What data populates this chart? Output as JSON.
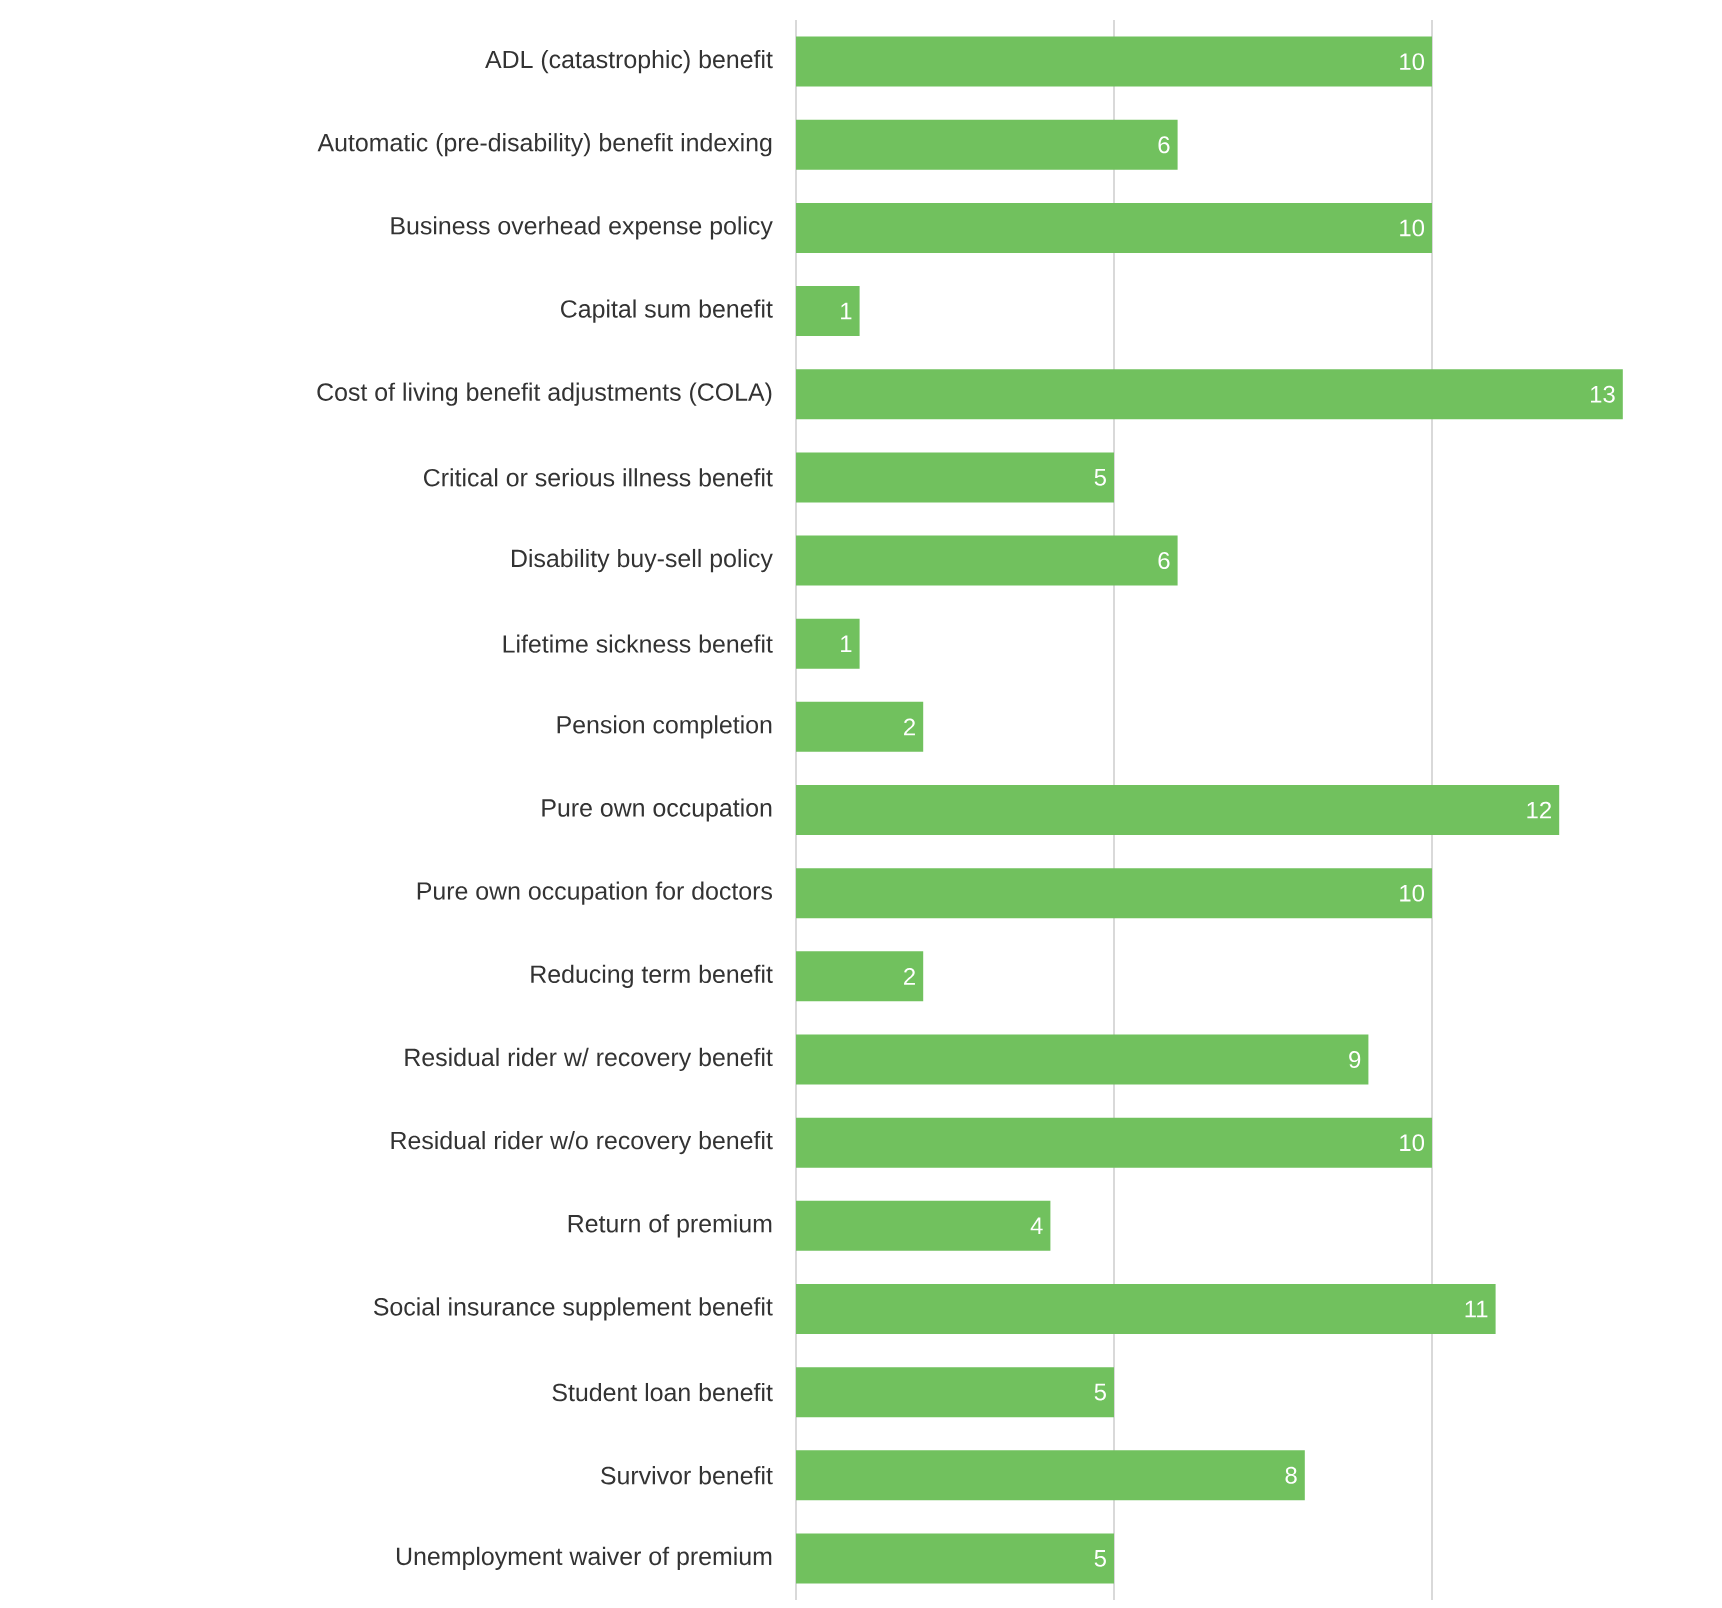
{
  "chart_data": {
    "type": "bar",
    "orientation": "horizontal",
    "categories": [
      "ADL (catastrophic) benefit",
      "Automatic (pre-disability) benefit indexing",
      "Business overhead expense policy",
      "Capital sum benefit",
      "Cost of living benefit adjustments (COLA)",
      "Critical or serious illness benefit",
      "Disability buy-sell policy",
      "Lifetime sickness benefit",
      "Pension completion",
      "Pure own occupation",
      "Pure own occupation for doctors",
      "Reducing term benefit",
      "Residual rider w/ recovery benefit",
      "Residual rider w/o recovery benefit",
      "Return of premium",
      "Social insurance supplement benefit",
      "Student loan benefit",
      "Survivor benefit",
      "Unemployment waiver of premium"
    ],
    "values": [
      10,
      6,
      10,
      1,
      13,
      5,
      6,
      1,
      2,
      12,
      10,
      2,
      9,
      10,
      4,
      11,
      5,
      8,
      5
    ],
    "color": "#71c15e",
    "ref_lines": [
      {
        "axis": "x",
        "value": 0,
        "color": "#d9d9d9"
      },
      {
        "axis": "x",
        "value": 5,
        "color": "#d9d9d9"
      },
      {
        "axis": "x",
        "value": 10,
        "color": "#d9d9d9"
      }
    ],
    "tick_labels": "y",
    "data_labels": true
  }
}
